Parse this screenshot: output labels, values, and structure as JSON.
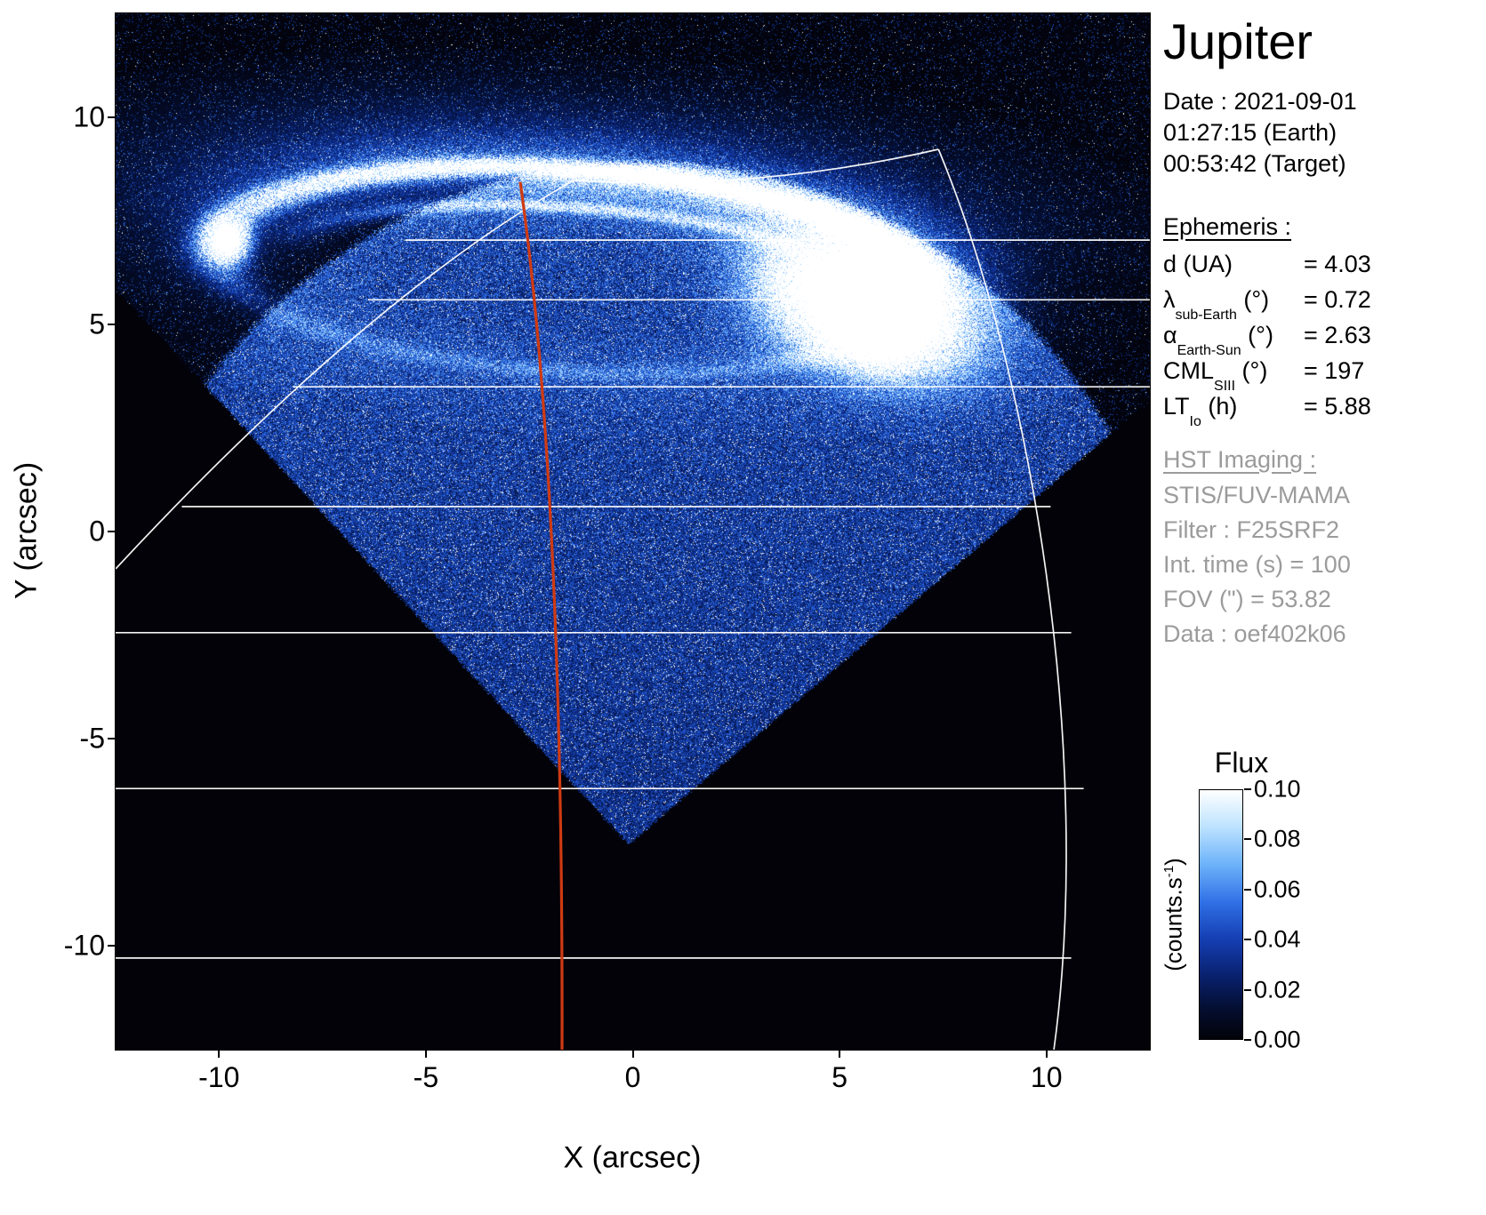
{
  "title": "Jupiter",
  "header": {
    "date": "Date : 2021-09-01",
    "earth_time": "01:27:15 (Earth)",
    "target_time": "00:53:42 (Target)"
  },
  "ephemeris": {
    "heading": "Ephemeris :",
    "rows": [
      {
        "label": [
          {
            "text": "d (UA)"
          }
        ],
        "value": "= 4.03"
      },
      {
        "label": [
          {
            "text": "λ"
          },
          {
            "text": "sub-Earth",
            "sub": true
          },
          {
            "text": " (°)"
          }
        ],
        "value": "= 0.72"
      },
      {
        "label": [
          {
            "text": "α"
          },
          {
            "text": "Earth-Sun",
            "sub": true
          },
          {
            "text": " (°)"
          }
        ],
        "value": "= 2.63"
      },
      {
        "label": [
          {
            "text": "CML"
          },
          {
            "text": "SIII",
            "sub": true
          },
          {
            "text": " (°)"
          }
        ],
        "value": "= 197"
      },
      {
        "label": [
          {
            "text": "LT"
          },
          {
            "text": "Io",
            "sub": true
          },
          {
            "text": " (h)"
          }
        ],
        "value": "= 5.88"
      }
    ]
  },
  "hst": {
    "heading": "HST Imaging :",
    "lines": [
      "STIS/FUV-MAMA",
      "Filter : F25SRF2",
      "Int. time (s) = 100",
      "FOV (\") = 53.82",
      "Data : oef402k06"
    ]
  },
  "colorbar": {
    "title": "Flux",
    "unit_pre": "(counts.s",
    "unit_sup": "-1",
    "unit_post": ")",
    "ticks": [
      "0.10",
      "0.08",
      "0.06",
      "0.04",
      "0.02",
      "0.00"
    ]
  },
  "axes": {
    "xlabel": "X (arcsec)",
    "ylabel": "Y (arcsec)",
    "x_tick_labels": [
      "-10",
      "-5",
      "0",
      "5",
      "10"
    ],
    "y_tick_labels": [
      "10",
      "5",
      "0",
      "-5",
      "-10"
    ]
  },
  "chart_data": {
    "type": "heatmap",
    "title": "Jupiter",
    "subtitle": "HST STIS/FUV-MAMA ultraviolet image of Jupiter polar aurora",
    "xlabel": "X (arcsec)",
    "ylabel": "Y (arcsec)",
    "xlim": [
      -12.5,
      12.5
    ],
    "ylim": [
      -12.5,
      12.5
    ],
    "x_ticks": [
      -10,
      -5,
      0,
      5,
      10
    ],
    "y_ticks": [
      10,
      5,
      0,
      -5,
      -10
    ],
    "flux_range_counts_per_s": [
      0.0,
      0.1
    ],
    "colorbar_ticks": [
      0.1,
      0.08,
      0.06,
      0.04,
      0.02,
      0.0
    ],
    "observation": {
      "target": "Jupiter",
      "date": "2021-09-01",
      "time_earth": "01:27:15",
      "time_target": "00:53:42",
      "d_UA": 4.03,
      "lambda_sub_earth_deg": 0.72,
      "alpha_earth_sun_deg": 2.63,
      "cml_siii_deg": 197,
      "lt_io_h": 5.88,
      "imaging": "STIS/FUV-MAMA",
      "filter": "F25SRF2",
      "int_time_s": 100,
      "fov_arcsec": 53.82,
      "data_id": "oef402k06"
    },
    "overlays": {
      "grid_color": "#ffffff",
      "meridian_color": "#cf3a12",
      "parallels": [
        {
          "y": 7.03,
          "x": [
            -5.5,
            12.5
          ]
        },
        {
          "y": 5.59,
          "x": [
            -6.4,
            12.5
          ]
        },
        {
          "y": 3.49,
          "x": [
            -8.2,
            12.5
          ]
        },
        {
          "y": 0.6,
          "x": [
            -10.9,
            10.1
          ]
        },
        {
          "y": -2.44,
          "x": [
            -12.5,
            10.6
          ]
        },
        {
          "y": -6.2,
          "x": [
            -12.5,
            10.9
          ]
        },
        {
          "y": -10.29,
          "x": [
            -12.5,
            10.6
          ]
        }
      ],
      "curves": [
        {
          "name": "limb-arc-left",
          "type": "Q",
          "color": "#ffffff",
          "w": 1.7,
          "o": 0.95,
          "pts": [
            [
              -12.5,
              -0.9
            ],
            [
              -6.3,
              5.75
            ],
            [
              -1.43,
              8.47
            ]
          ]
        },
        {
          "name": "limb-arc-top",
          "type": "Q",
          "color": "#ffffff",
          "w": 1.7,
          "o": 0.95,
          "pts": [
            [
              -1.43,
              8.47
            ],
            [
              2.98,
              8.21
            ],
            [
              7.39,
              9.22
            ]
          ]
        },
        {
          "name": "limb-arc-right",
          "type": "C",
          "color": "#ffffff",
          "w": 1.7,
          "o": 0.95,
          "pts": [
            [
              7.39,
              9.22
            ],
            [
              9.64,
              3.82
            ],
            [
              11.15,
              -5.4
            ],
            [
              10.18,
              -12.5
            ]
          ]
        },
        {
          "name": "cml-meridian-line",
          "type": "C",
          "color": "#cf3a12",
          "w": 3.2,
          "o": 1,
          "pts": [
            [
              -2.72,
              8.43
            ],
            [
              -1.97,
              3.17
            ],
            [
              -1.69,
              -4.33
            ],
            [
              -1.71,
              -12.5
            ]
          ]
        }
      ]
    },
    "render": {
      "colormap": [
        [
          0,
          2,
          2,
          8
        ],
        [
          0.12,
          4,
          14,
          48
        ],
        [
          0.25,
          9,
          32,
          108
        ],
        [
          0.4,
          20,
          62,
          178
        ],
        [
          0.55,
          48,
          112,
          230
        ],
        [
          0.7,
          108,
          178,
          250
        ],
        [
          0.85,
          188,
          226,
          255
        ],
        [
          1,
          255,
          255,
          255
        ]
      ],
      "aperture": {
        "bottom": [
          -0.1,
          -7.55
        ],
        "left_pt": [
          -12.5,
          5.85
        ],
        "right_pt": [
          11.25,
          2.1
        ]
      },
      "disk": {
        "cx": 0.23,
        "cy": -4.2,
        "r": 13.1
      },
      "oval": {
        "cx": -1.65,
        "cy": 6.3,
        "rx": 8.5,
        "ry": 2.45,
        "rot_deg": -3.5
      },
      "blob": {
        "cx": 5.6,
        "cy": 5.45,
        "sx": 1.55,
        "sy": 0.9,
        "rot_deg": -20,
        "amp": 2.3
      },
      "blob_core": {
        "cx": 6.05,
        "cy": 5.15,
        "s": 0.55,
        "amp": 1.9
      },
      "spot": {
        "cx": -9.8,
        "cy": 7.0,
        "s": 0.33,
        "amp": 1.9
      }
    }
  }
}
